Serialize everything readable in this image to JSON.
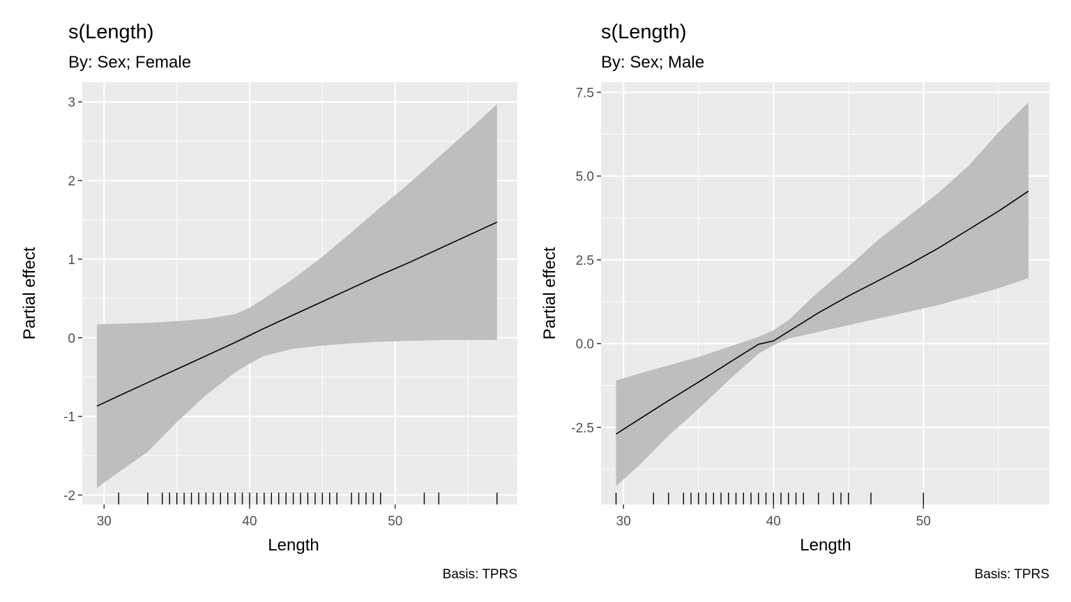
{
  "chart_data": [
    {
      "type": "line",
      "title": "s(Length)",
      "subtitle": "By: Sex; Female",
      "xlabel": "Length",
      "ylabel": "Partial effect",
      "caption": "Basis: TPRS",
      "xlim": [
        28.5,
        58.4
      ],
      "ylim": [
        -2.12,
        3.25
      ],
      "xticks": [
        30,
        40,
        50
      ],
      "yticks": [
        -2,
        -1,
        0,
        1,
        2,
        3
      ],
      "xtick_labels": [
        "30",
        "40",
        "50"
      ],
      "ytick_labels": [
        "-2",
        "-1",
        "0",
        "1",
        "2",
        "3"
      ],
      "grid": true,
      "line_color": "#000000",
      "band_color": "#bebebe",
      "panel_color": "#ebebeb",
      "x": [
        29.5,
        31,
        33,
        35,
        37,
        39,
        40,
        41,
        43,
        45,
        47,
        49,
        51,
        53,
        55,
        57
      ],
      "estimate": [
        -0.87,
        -0.74,
        -0.57,
        -0.4,
        -0.23,
        -0.06,
        0.03,
        0.12,
        0.29,
        0.46,
        0.63,
        0.8,
        0.96,
        1.13,
        1.3,
        1.47
      ],
      "upper": [
        0.17,
        0.18,
        0.19,
        0.21,
        0.24,
        0.3,
        0.38,
        0.5,
        0.75,
        1.03,
        1.34,
        1.66,
        1.97,
        2.3,
        2.63,
        2.97
      ],
      "lower": [
        -1.91,
        -1.71,
        -1.45,
        -1.07,
        -0.73,
        -0.44,
        -0.33,
        -0.23,
        -0.14,
        -0.1,
        -0.07,
        -0.05,
        -0.04,
        -0.03,
        -0.03,
        -0.03
      ],
      "rug": [
        31,
        33,
        34,
        34.5,
        35,
        35.5,
        36,
        36.5,
        37,
        37.5,
        38,
        38.5,
        39,
        39.5,
        40,
        40.5,
        41,
        41.5,
        42,
        42.5,
        43,
        43.5,
        44,
        44.5,
        45,
        45.5,
        46,
        47,
        47.5,
        48,
        48.5,
        49,
        52,
        53,
        57
      ]
    },
    {
      "type": "line",
      "title": "s(Length)",
      "subtitle": "By: Sex; Male",
      "xlabel": "Length",
      "ylabel": "Partial effect",
      "caption": "Basis: TPRS",
      "xlim": [
        28.5,
        58.4
      ],
      "ylim": [
        -4.8,
        7.8
      ],
      "xticks": [
        30,
        40,
        50
      ],
      "yticks": [
        -2.5,
        0,
        2.5,
        5,
        7.5
      ],
      "xtick_labels": [
        "30",
        "40",
        "50"
      ],
      "ytick_labels": [
        "-2.5",
        "0.0",
        "2.5",
        "5.0",
        "7.5"
      ],
      "grid": true,
      "line_color": "#000000",
      "band_color": "#bebebe",
      "panel_color": "#ebebeb",
      "x": [
        29.5,
        31,
        33,
        35,
        37,
        39,
        40,
        41,
        43,
        45,
        47,
        49,
        51,
        53,
        55,
        57
      ],
      "estimate": [
        -2.7,
        -2.27,
        -1.7,
        -1.15,
        -0.58,
        -0.02,
        0.08,
        0.36,
        0.92,
        1.42,
        1.88,
        2.35,
        2.85,
        3.4,
        3.95,
        4.55
      ],
      "upper": [
        -1.1,
        -0.9,
        -0.65,
        -0.4,
        -0.1,
        0.2,
        0.4,
        0.7,
        1.55,
        2.3,
        3.1,
        3.8,
        4.5,
        5.3,
        6.3,
        7.2
      ],
      "lower": [
        -4.25,
        -3.65,
        -2.75,
        -1.95,
        -1.1,
        -0.3,
        -0.05,
        0.15,
        0.35,
        0.55,
        0.75,
        0.95,
        1.15,
        1.4,
        1.65,
        1.95
      ],
      "rug": [
        29.5,
        32,
        33,
        34,
        34.5,
        35,
        35.5,
        36,
        36.5,
        37,
        37.5,
        38,
        38.5,
        39,
        39.5,
        40,
        40.5,
        41,
        41.5,
        42,
        43,
        44,
        44.5,
        45,
        46.5,
        50
      ]
    }
  ]
}
